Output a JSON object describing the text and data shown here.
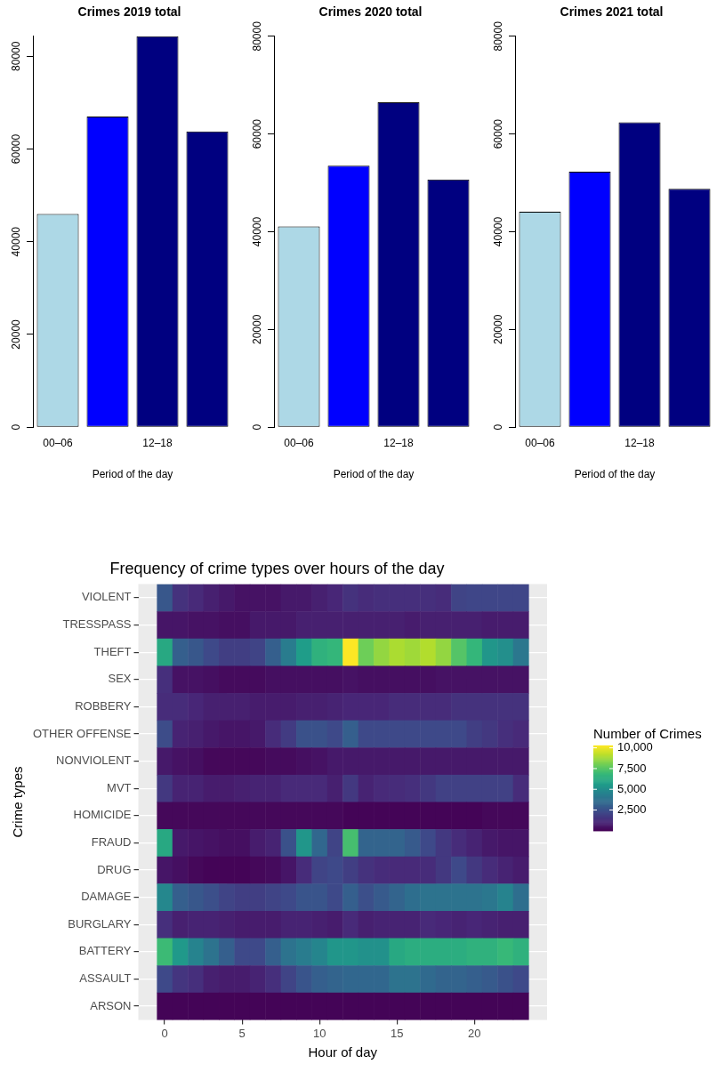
{
  "chart_data": [
    {
      "type": "bar",
      "title": "Crimes 2019 total",
      "xlabel": "Period of the day",
      "categories": [
        "00–06",
        null,
        "12–18",
        null
      ],
      "values": [
        46000,
        67000,
        84300,
        63800
      ],
      "colors": [
        "#add8e6",
        "#0000ff",
        "#000080",
        "#000080"
      ],
      "ylim": [
        0,
        84300
      ],
      "yticks": [
        0,
        20000,
        40000,
        60000,
        80000
      ],
      "grid": false
    },
    {
      "type": "bar",
      "title": "Crimes 2020 total",
      "xlabel": "Period of the day",
      "categories": [
        "00–06",
        null,
        "12–18",
        null
      ],
      "values": [
        41100,
        53500,
        66500,
        50700
      ],
      "colors": [
        "#add8e6",
        "#0000ff",
        "#000080",
        "#000080"
      ],
      "ylim": [
        0,
        80000
      ],
      "yticks": [
        0,
        20000,
        40000,
        60000,
        80000
      ],
      "grid": false
    },
    {
      "type": "bar",
      "title": "Crimes 2021 total",
      "xlabel": "Period of the day",
      "categories": [
        "00–06",
        null,
        "12–18",
        null
      ],
      "values": [
        44100,
        52300,
        62400,
        48800
      ],
      "colors": [
        "#add8e6",
        "#0000ff",
        "#000080",
        "#000080"
      ],
      "ylim": [
        0,
        80000
      ],
      "yticks": [
        0,
        20000,
        40000,
        60000,
        80000
      ],
      "grid": false
    },
    {
      "type": "heatmap",
      "title": "Frequency of crime types over hours of the day",
      "xlabel": "Hour of day",
      "ylabel": "Crime types",
      "clabel": "Number of Crimes",
      "x": [
        0,
        1,
        2,
        3,
        4,
        5,
        6,
        7,
        8,
        9,
        10,
        11,
        12,
        13,
        14,
        15,
        16,
        17,
        18,
        19,
        20,
        21,
        22,
        23
      ],
      "xlim": [
        -1.7,
        24.7
      ],
      "xticks": [
        0,
        5,
        10,
        15,
        20
      ],
      "grid": true,
      "y_categories": [
        "VIOLENT",
        "TRESSPASS",
        "THEFT",
        "SEX",
        "ROBBERY",
        "OTHER OFFENSE",
        "NONVIOLENT",
        "MVT",
        "HOMICIDE",
        "FRAUD",
        "DRUG",
        "DAMAGE",
        "BURGLARY",
        "BATTERY",
        "ASSAULT",
        "ARSON"
      ],
      "clim": [
        0,
        10300
      ],
      "cticks": [
        {
          "value": 2500,
          "label": "2,500"
        },
        {
          "value": 5000,
          "label": "5,000"
        },
        {
          "value": 7500,
          "label": "7,500"
        },
        {
          "value": 10000,
          "label": "10,000"
        }
      ],
      "cells": [
        [
          2800,
          1500,
          1200,
          900,
          700,
          500,
          500,
          500,
          700,
          700,
          900,
          1100,
          1500,
          1300,
          1400,
          1400,
          1400,
          1400,
          1300,
          2100,
          2200,
          2200,
          2200,
          2200
        ],
        [
          600,
          600,
          500,
          500,
          400,
          400,
          700,
          700,
          700,
          900,
          900,
          900,
          900,
          900,
          900,
          900,
          800,
          900,
          900,
          900,
          900,
          800,
          800,
          800
        ],
        [
          6200,
          3100,
          2800,
          2300,
          1900,
          1900,
          2100,
          3100,
          4300,
          5700,
          6600,
          6800,
          10300,
          8000,
          8600,
          9000,
          8800,
          9100,
          8600,
          7500,
          6800,
          5400,
          5100,
          4100
        ],
        [
          1400,
          500,
          500,
          400,
          300,
          300,
          300,
          400,
          400,
          400,
          400,
          400,
          500,
          400,
          400,
          400,
          400,
          400,
          500,
          500,
          500,
          500,
          500,
          500
        ],
        [
          1300,
          1300,
          1100,
          900,
          900,
          900,
          800,
          800,
          800,
          900,
          900,
          1000,
          1100,
          1100,
          1100,
          1300,
          1300,
          1300,
          1300,
          1500,
          1500,
          1500,
          1500,
          1500
        ],
        [
          2400,
          1000,
          900,
          700,
          600,
          600,
          700,
          1300,
          1800,
          2600,
          2600,
          2300,
          3100,
          2300,
          2300,
          2300,
          2300,
          2300,
          2300,
          2300,
          1900,
          1700,
          1400,
          1200
        ],
        [
          700,
          500,
          400,
          200,
          200,
          200,
          200,
          300,
          300,
          400,
          500,
          700,
          700,
          700,
          700,
          700,
          700,
          700,
          700,
          700,
          700,
          700,
          700,
          700
        ],
        [
          1700,
          1000,
          1000,
          800,
          800,
          900,
          1000,
          1000,
          1200,
          1200,
          1200,
          900,
          1700,
          1000,
          1200,
          1300,
          1400,
          1700,
          2000,
          2000,
          2000,
          2000,
          2000,
          1300
        ],
        [
          200,
          200,
          200,
          200,
          200,
          200,
          200,
          200,
          200,
          200,
          200,
          200,
          100,
          100,
          100,
          100,
          100,
          100,
          100,
          100,
          100,
          200,
          200,
          200
        ],
        [
          6200,
          700,
          600,
          500,
          400,
          400,
          800,
          1000,
          2600,
          5400,
          3400,
          2100,
          7200,
          3300,
          3300,
          3300,
          2900,
          2300,
          1700,
          1300,
          1000,
          700,
          600,
          600
        ],
        [
          600,
          400,
          200,
          100,
          100,
          100,
          200,
          300,
          600,
          1300,
          2100,
          2300,
          1900,
          1500,
          1300,
          1200,
          1200,
          1300,
          1700,
          2300,
          1700,
          1300,
          1000,
          800
        ],
        [
          4800,
          3100,
          2800,
          2500,
          2100,
          1900,
          1900,
          2100,
          2300,
          2700,
          2700,
          2300,
          3100,
          2500,
          2900,
          3300,
          3700,
          3900,
          3900,
          3900,
          3900,
          4100,
          4600,
          3700
        ],
        [
          1400,
          900,
          1000,
          1000,
          900,
          800,
          800,
          800,
          1000,
          1000,
          900,
          800,
          1200,
          900,
          1000,
          1000,
          1000,
          1200,
          1100,
          1000,
          1100,
          1000,
          900,
          900
        ],
        [
          7000,
          5500,
          4600,
          3900,
          3100,
          2300,
          2300,
          3100,
          3900,
          4300,
          4700,
          5400,
          5400,
          5200,
          5200,
          6200,
          6400,
          6400,
          6400,
          6400,
          6600,
          6600,
          6900,
          6600
        ],
        [
          2300,
          1600,
          1400,
          900,
          800,
          800,
          1000,
          1400,
          2100,
          2700,
          3100,
          3300,
          3400,
          3400,
          3400,
          3900,
          3900,
          3500,
          3300,
          3300,
          3100,
          2900,
          2600,
          2300
        ],
        [
          100,
          100,
          100,
          100,
          100,
          100,
          100,
          100,
          100,
          100,
          100,
          100,
          100,
          100,
          100,
          100,
          100,
          100,
          100,
          100,
          100,
          100,
          100,
          100
        ]
      ]
    }
  ]
}
